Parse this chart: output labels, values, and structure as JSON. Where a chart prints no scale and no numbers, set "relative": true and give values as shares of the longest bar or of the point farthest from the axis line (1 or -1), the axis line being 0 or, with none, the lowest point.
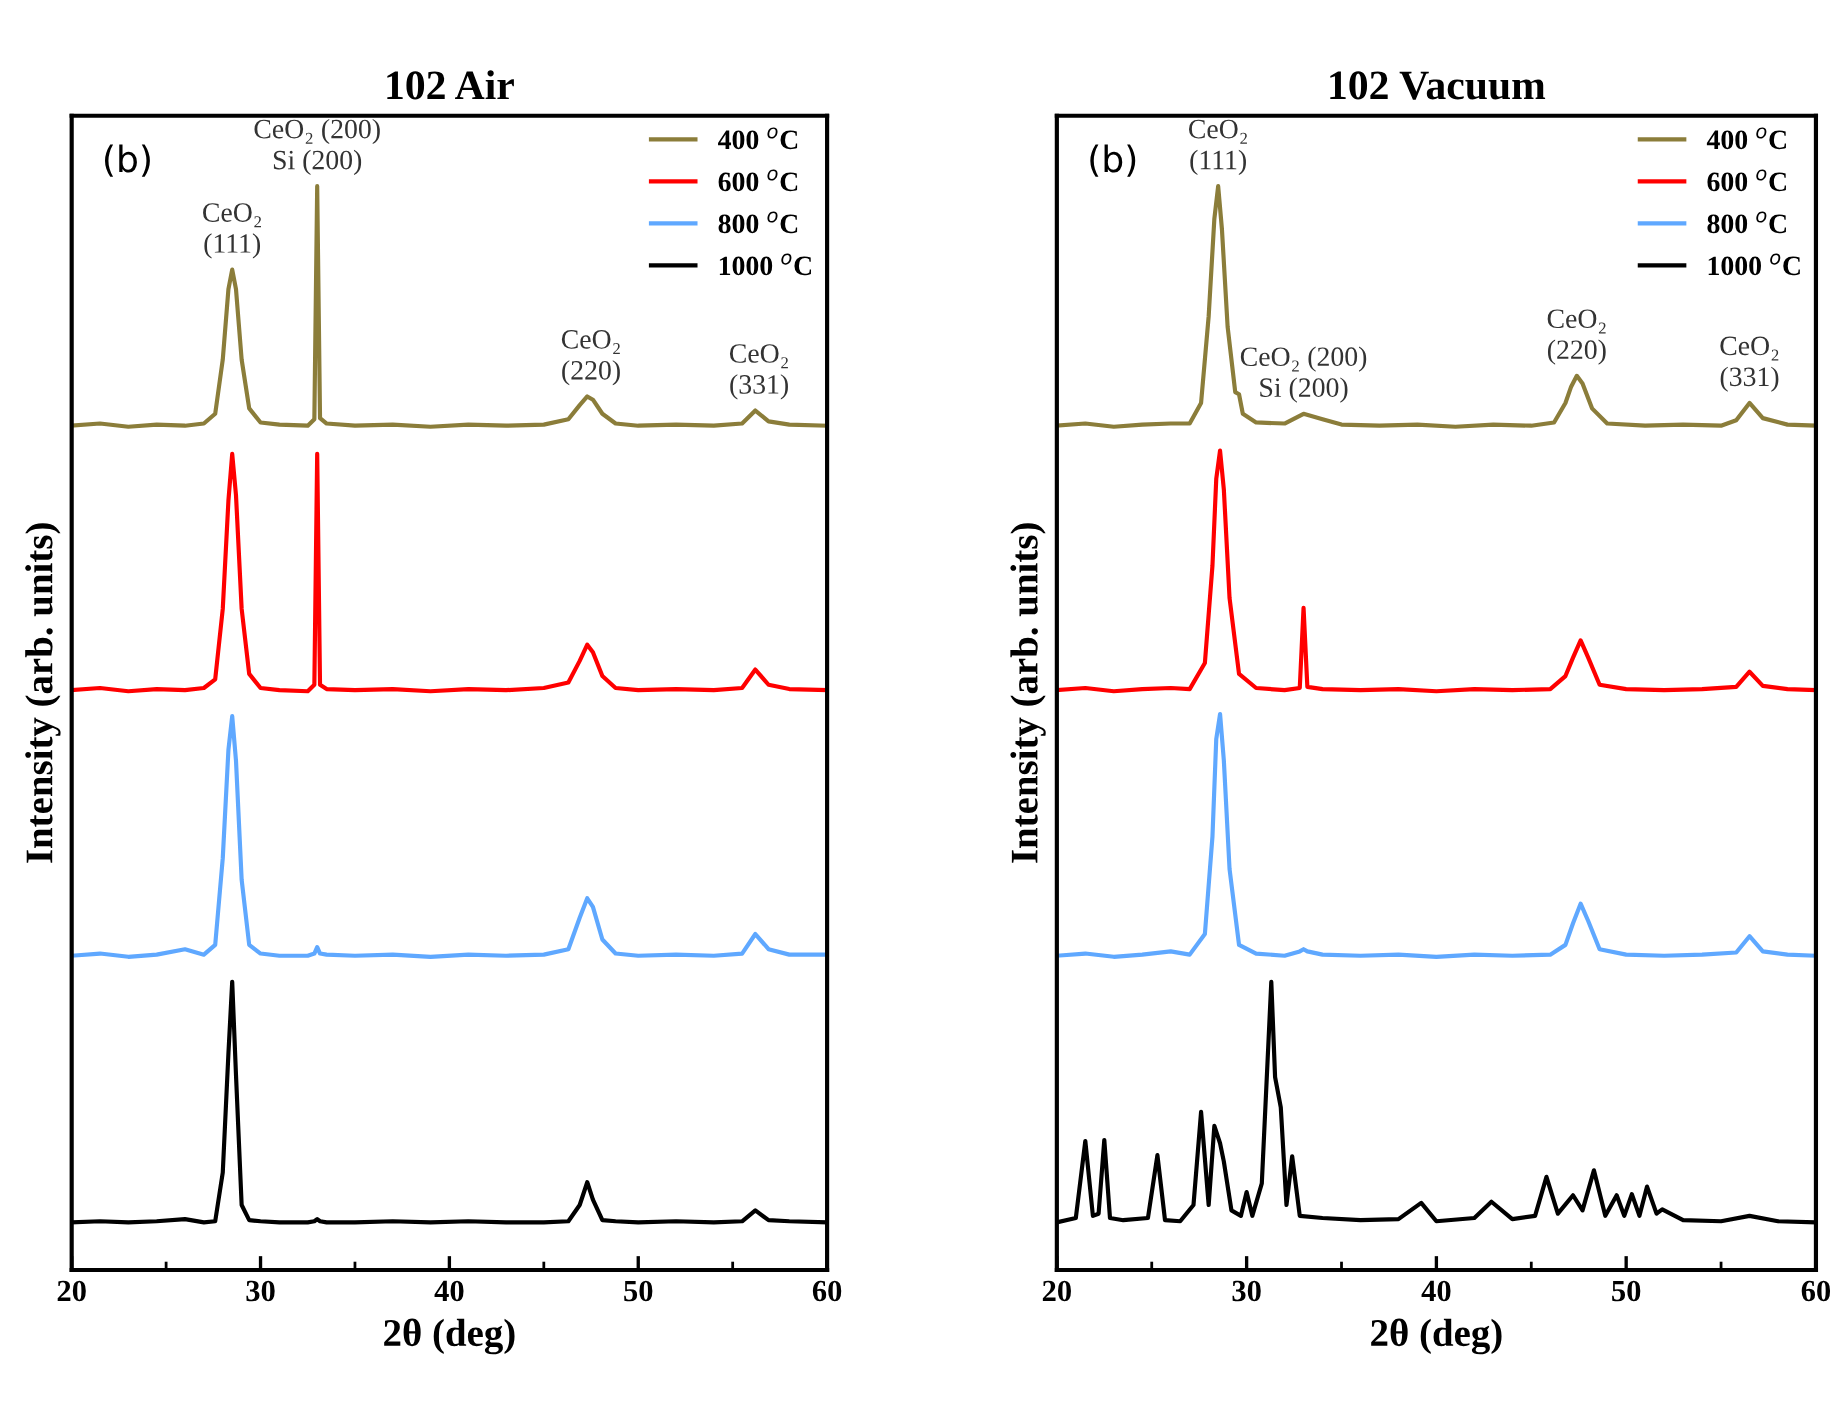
{
  "chart_data": [
    {
      "type": "line",
      "title": "102 Air",
      "xlabel": "2θ (deg)",
      "ylabel": "Intensity (arb. units)",
      "relative": true,
      "xlim": [
        20,
        60
      ],
      "xticks": [
        20,
        30,
        40,
        50,
        60
      ],
      "grid": false,
      "legend": "top right",
      "marker": "none",
      "line_style": "solid",
      "annotations": [
        "(b)",
        {
          "text": "CeO₂\n(111)",
          "x": 28.5,
          "y": 0.923
        },
        {
          "text": "CeO₂ (200)\nSi (200)",
          "x": 33.0,
          "y": 1.0
        },
        {
          "text": "CeO₂\n(220)",
          "x": 47.5,
          "y": 0.806
        },
        {
          "text": "CeO₂\n(331)",
          "x": 56.4,
          "y": 0.793
        }
      ],
      "series": [
        {
          "name": "400 $^{o}$C",
          "color": "#8b7d3a",
          "x": [
            20,
            21.5,
            23,
            24.5,
            26,
            27,
            27.6,
            28.0,
            28.3,
            28.5,
            28.7,
            29.0,
            29.4,
            30,
            31,
            32.5,
            32.85,
            33.0,
            33.15,
            33.5,
            35,
            37,
            39,
            41,
            43,
            45,
            46.3,
            46.9,
            47.3,
            47.6,
            48.1,
            48.8,
            50,
            52,
            54,
            55.5,
            56.2,
            56.9,
            58,
            60
          ],
          "values": [
            0.779,
            0.781,
            0.778,
            0.78,
            0.779,
            0.781,
            0.79,
            0.84,
            0.905,
            0.923,
            0.905,
            0.84,
            0.795,
            0.782,
            0.78,
            0.779,
            0.785,
            1.0,
            0.786,
            0.781,
            0.779,
            0.78,
            0.778,
            0.78,
            0.779,
            0.78,
            0.785,
            0.798,
            0.806,
            0.803,
            0.79,
            0.781,
            0.779,
            0.78,
            0.779,
            0.781,
            0.793,
            0.783,
            0.78,
            0.779
          ]
        },
        {
          "name": "600 $^{o}$C",
          "color": "#ff0000",
          "x": [
            20,
            21.5,
            23,
            24.5,
            26,
            27,
            27.6,
            28.0,
            28.3,
            28.5,
            28.7,
            29.0,
            29.4,
            30,
            31,
            32.5,
            32.85,
            33.0,
            33.15,
            33.5,
            35,
            37,
            39,
            41,
            43,
            45,
            46.3,
            46.9,
            47.3,
            47.6,
            48.1,
            48.8,
            50,
            52,
            54,
            55.5,
            56.2,
            56.9,
            58,
            60
          ],
          "values": [
            0.535,
            0.537,
            0.534,
            0.536,
            0.535,
            0.537,
            0.545,
            0.61,
            0.71,
            0.753,
            0.715,
            0.61,
            0.55,
            0.537,
            0.535,
            0.534,
            0.54,
            0.753,
            0.54,
            0.536,
            0.535,
            0.536,
            0.534,
            0.536,
            0.535,
            0.537,
            0.542,
            0.562,
            0.577,
            0.57,
            0.548,
            0.537,
            0.535,
            0.536,
            0.535,
            0.537,
            0.554,
            0.54,
            0.536,
            0.535
          ]
        },
        {
          "name": "800 $^{o}$C",
          "color": "#5fa8ff",
          "x": [
            20,
            21.5,
            23,
            24.5,
            26,
            27,
            27.6,
            28.0,
            28.3,
            28.5,
            28.7,
            29.0,
            29.4,
            30,
            31,
            32.5,
            32.85,
            33.0,
            33.15,
            33.5,
            35,
            37,
            39,
            41,
            43,
            45,
            46.3,
            46.9,
            47.3,
            47.6,
            48.1,
            48.8,
            50,
            52,
            54,
            55.5,
            56.2,
            56.9,
            58,
            60
          ],
          "values": [
            0.29,
            0.292,
            0.289,
            0.291,
            0.296,
            0.291,
            0.3,
            0.38,
            0.48,
            0.511,
            0.47,
            0.36,
            0.3,
            0.292,
            0.29,
            0.29,
            0.292,
            0.298,
            0.292,
            0.291,
            0.29,
            0.291,
            0.289,
            0.291,
            0.29,
            0.291,
            0.296,
            0.325,
            0.343,
            0.335,
            0.305,
            0.292,
            0.29,
            0.291,
            0.29,
            0.292,
            0.31,
            0.296,
            0.291,
            0.291
          ]
        },
        {
          "name": "1000 $^{o}$C",
          "color": "#000000",
          "x": [
            20,
            21.5,
            23,
            24.5,
            26,
            27,
            27.6,
            28.0,
            28.3,
            28.5,
            28.7,
            29.0,
            29.4,
            30,
            31,
            32.5,
            32.85,
            33.0,
            33.15,
            33.5,
            35,
            37,
            39,
            41,
            43,
            45,
            46.3,
            46.9,
            47.3,
            47.6,
            48.1,
            48.8,
            50,
            52,
            54,
            55.5,
            56.2,
            56.9,
            58,
            60
          ],
          "values": [
            0.044,
            0.045,
            0.044,
            0.045,
            0.047,
            0.044,
            0.045,
            0.09,
            0.2,
            0.266,
            0.18,
            0.06,
            0.046,
            0.045,
            0.044,
            0.044,
            0.045,
            0.047,
            0.045,
            0.044,
            0.044,
            0.045,
            0.044,
            0.045,
            0.044,
            0.044,
            0.045,
            0.06,
            0.081,
            0.065,
            0.046,
            0.045,
            0.044,
            0.045,
            0.044,
            0.045,
            0.055,
            0.046,
            0.045,
            0.044
          ]
        }
      ]
    },
    {
      "type": "line",
      "title": "102 Vacuum",
      "xlabel": "2θ (deg)",
      "ylabel": "Intensity (arb. units)",
      "relative": true,
      "xlim": [
        20,
        60
      ],
      "xticks": [
        20,
        30,
        40,
        50,
        60
      ],
      "grid": false,
      "legend": "top right",
      "marker": "none",
      "line_style": "solid",
      "annotations": [
        "(b)",
        {
          "text": "CeO₂\n(111)",
          "x": 28.5,
          "y": 1.0
        },
        {
          "text": "CeO₂ (200)\nSi (200)",
          "x": 33.0,
          "y": 0.79
        },
        {
          "text": "CeO₂\n(220)",
          "x": 47.4,
          "y": 0.825
        },
        {
          "text": "CeO₂\n(331)",
          "x": 56.5,
          "y": 0.8
        }
      ],
      "series": [
        {
          "name": "400 $^{o}$C",
          "color": "#8b7d3a",
          "x": [
            20,
            21.5,
            23,
            24.5,
            26,
            27,
            27.6,
            28.0,
            28.3,
            28.5,
            28.7,
            29.0,
            29.4,
            29.6,
            29.8,
            30.5,
            32,
            33,
            34,
            35,
            37,
            39,
            41,
            43,
            45,
            46.2,
            46.8,
            47.1,
            47.4,
            47.7,
            48.2,
            49,
            51,
            53,
            55,
            55.8,
            56.5,
            57.2,
            58.5,
            60
          ],
          "values": [
            0.779,
            0.781,
            0.778,
            0.78,
            0.781,
            0.781,
            0.8,
            0.88,
            0.97,
            1.0,
            0.96,
            0.87,
            0.81,
            0.808,
            0.79,
            0.782,
            0.781,
            0.79,
            0.785,
            0.78,
            0.779,
            0.78,
            0.778,
            0.78,
            0.779,
            0.782,
            0.8,
            0.815,
            0.825,
            0.818,
            0.795,
            0.781,
            0.779,
            0.78,
            0.779,
            0.784,
            0.8,
            0.786,
            0.78,
            0.779
          ]
        },
        {
          "name": "600 $^{o}$C",
          "color": "#ff0000",
          "x": [
            20,
            21.5,
            23,
            24.5,
            26,
            27,
            27.8,
            28.2,
            28.4,
            28.6,
            28.8,
            29.1,
            29.6,
            30.5,
            32,
            32.8,
            33.0,
            33.2,
            34,
            36,
            38,
            40,
            42,
            44,
            46,
            46.8,
            47.2,
            47.6,
            48.0,
            48.6,
            50,
            52,
            54,
            55.8,
            56.5,
            57.2,
            58.5,
            60
          ],
          "values": [
            0.535,
            0.537,
            0.534,
            0.536,
            0.537,
            0.536,
            0.56,
            0.65,
            0.73,
            0.756,
            0.72,
            0.62,
            0.55,
            0.537,
            0.535,
            0.537,
            0.611,
            0.538,
            0.536,
            0.535,
            0.536,
            0.534,
            0.536,
            0.535,
            0.536,
            0.548,
            0.565,
            0.581,
            0.565,
            0.54,
            0.536,
            0.535,
            0.536,
            0.538,
            0.552,
            0.539,
            0.536,
            0.535
          ]
        },
        {
          "name": "800 $^{o}$C",
          "color": "#5fa8ff",
          "x": [
            20,
            21.5,
            23,
            24.5,
            26,
            27,
            27.8,
            28.2,
            28.4,
            28.6,
            28.8,
            29.1,
            29.6,
            30.5,
            32,
            32.8,
            33.0,
            33.2,
            34,
            36,
            38,
            40,
            42,
            44,
            46,
            46.8,
            47.2,
            47.6,
            48.0,
            48.6,
            50,
            52,
            54,
            55.8,
            56.5,
            57.2,
            58.5,
            60
          ],
          "values": [
            0.29,
            0.292,
            0.289,
            0.291,
            0.294,
            0.291,
            0.31,
            0.4,
            0.49,
            0.513,
            0.47,
            0.37,
            0.3,
            0.292,
            0.29,
            0.294,
            0.296,
            0.294,
            0.291,
            0.29,
            0.291,
            0.289,
            0.291,
            0.29,
            0.291,
            0.3,
            0.32,
            0.338,
            0.322,
            0.296,
            0.291,
            0.29,
            0.291,
            0.293,
            0.308,
            0.294,
            0.291,
            0.29
          ]
        },
        {
          "name": "1000 $^{o}$C",
          "color": "#000000",
          "x": [
            20,
            21.0,
            21.5,
            21.9,
            22.2,
            22.5,
            22.8,
            23.5,
            24.8,
            25.3,
            25.7,
            26.5,
            27.2,
            27.6,
            28.0,
            28.3,
            28.6,
            28.8,
            29.2,
            29.7,
            30.0,
            30.3,
            30.8,
            31.3,
            31.5,
            31.8,
            32.1,
            32.4,
            32.8,
            34,
            36,
            38,
            39.2,
            40,
            42,
            42.9,
            44,
            45.2,
            45.8,
            46.4,
            47.2,
            47.7,
            48.3,
            48.9,
            49.5,
            49.9,
            50.3,
            50.7,
            51.1,
            51.6,
            51.9,
            53,
            55,
            56.5,
            58,
            60
          ],
          "values": [
            0.044,
            0.048,
            0.119,
            0.05,
            0.052,
            0.12,
            0.048,
            0.046,
            0.048,
            0.106,
            0.046,
            0.045,
            0.06,
            0.146,
            0.06,
            0.133,
            0.117,
            0.1,
            0.055,
            0.05,
            0.072,
            0.05,
            0.08,
            0.266,
            0.178,
            0.15,
            0.06,
            0.105,
            0.05,
            0.048,
            0.046,
            0.047,
            0.062,
            0.045,
            0.048,
            0.063,
            0.047,
            0.05,
            0.086,
            0.052,
            0.069,
            0.055,
            0.092,
            0.05,
            0.069,
            0.05,
            0.07,
            0.05,
            0.077,
            0.052,
            0.056,
            0.046,
            0.045,
            0.05,
            0.045,
            0.044
          ]
        }
      ]
    }
  ]
}
